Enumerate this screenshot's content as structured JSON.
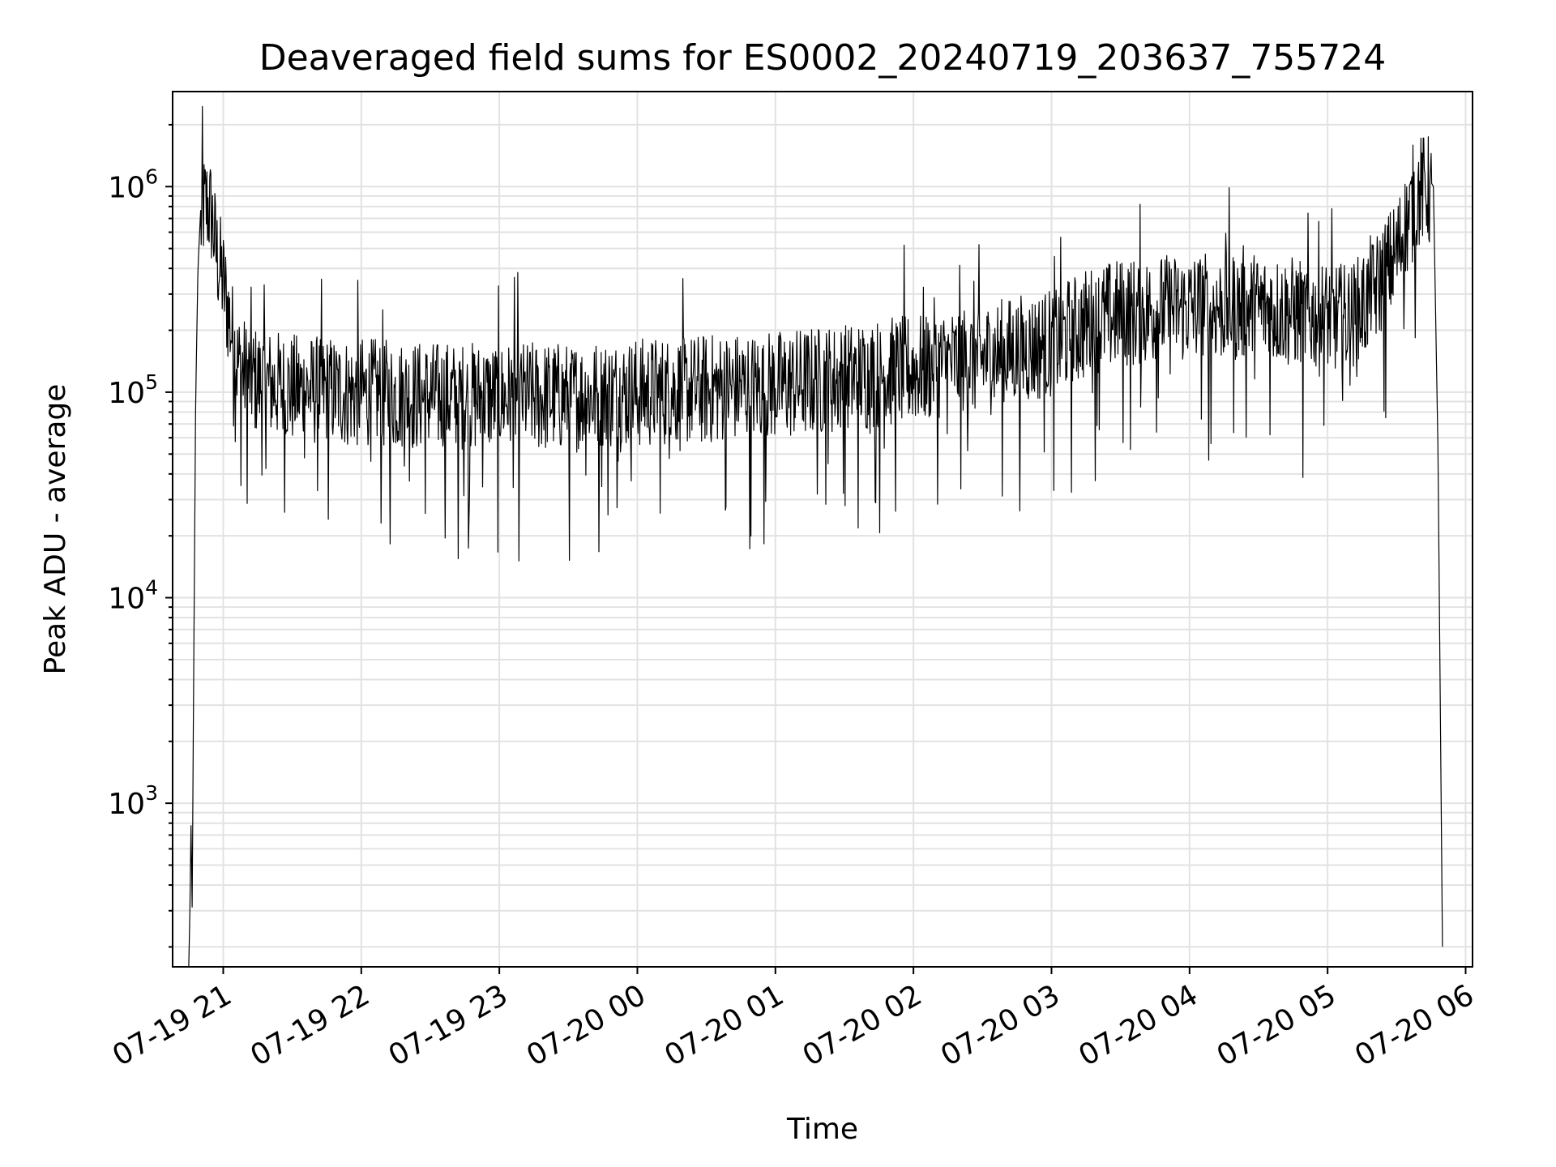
{
  "chart_data": {
    "type": "line",
    "title": "Deaveraged field sums for ES0002_20240719_203637_755724",
    "xlabel": "Time",
    "ylabel": "Peak ADU - average",
    "xscale": "time",
    "yscale": "log",
    "xlim": [
      "2024-07-19T20:38:00",
      "2024-07-20T06:03:00"
    ],
    "ylim": [
      160,
      2900000
    ],
    "grid": true,
    "legend": "none",
    "line_color": "#000000",
    "x_ticks": [
      {
        "value": "2024-07-19T21:00:00",
        "label": "07-19 21"
      },
      {
        "value": "2024-07-19T22:00:00",
        "label": "07-19 22"
      },
      {
        "value": "2024-07-19T23:00:00",
        "label": "07-19 23"
      },
      {
        "value": "2024-07-20T00:00:00",
        "label": "07-20 00"
      },
      {
        "value": "2024-07-20T01:00:00",
        "label": "07-20 01"
      },
      {
        "value": "2024-07-20T02:00:00",
        "label": "07-20 02"
      },
      {
        "value": "2024-07-20T03:00:00",
        "label": "07-20 03"
      },
      {
        "value": "2024-07-20T04:00:00",
        "label": "07-20 04"
      },
      {
        "value": "2024-07-20T05:00:00",
        "label": "07-20 05"
      },
      {
        "value": "2024-07-20T06:00:00",
        "label": "07-20 06"
      }
    ],
    "y_ticks": [
      {
        "value": 1000,
        "base": "10",
        "exp": "3"
      },
      {
        "value": 10000,
        "base": "10",
        "exp": "4"
      },
      {
        "value": 100000,
        "base": "10",
        "exp": "5"
      },
      {
        "value": 1000000,
        "base": "10",
        "exp": "6"
      }
    ],
    "series": [
      {
        "x": [
          "2024-07-19T20:45:00",
          "2024-07-19T20:45:30",
          "2024-07-19T20:46:00",
          "2024-07-19T20:46:30",
          "2024-07-19T20:47:00",
          "2024-07-19T20:48:00",
          "2024-07-19T20:49:00",
          "2024-07-19T20:50:00",
          "2024-07-19T20:51:00",
          "2024-07-19T20:53:00",
          "2024-07-19T20:55:00",
          "2024-07-19T20:57:00",
          "2024-07-19T21:00:00",
          "2024-07-19T21:03:00",
          "2024-07-19T21:06:00",
          "2024-07-19T21:10:00",
          "2024-07-19T21:15:00",
          "2024-07-19T21:30:00",
          "2024-07-19T22:00:00",
          "2024-07-19T22:30:00",
          "2024-07-19T23:00:00",
          "2024-07-19T23:30:00",
          "2024-07-20T00:00:00",
          "2024-07-20T00:30:00",
          "2024-07-20T01:00:00",
          "2024-07-20T01:30:00",
          "2024-07-20T02:00:00",
          "2024-07-20T02:30:00",
          "2024-07-20T03:00:00",
          "2024-07-20T03:15:00",
          "2024-07-20T03:30:00",
          "2024-07-20T04:00:00",
          "2024-07-20T04:30:00",
          "2024-07-20T05:00:00",
          "2024-07-20T05:10:00",
          "2024-07-20T05:20:00",
          "2024-07-20T05:30:00",
          "2024-07-20T05:35:00",
          "2024-07-20T05:40:00",
          "2024-07-20T05:43:00",
          "2024-07-20T05:46:00",
          "2024-07-20T05:48:00",
          "2024-07-20T05:50:00"
        ],
        "y": [
          160,
          300,
          800,
          300,
          2500,
          90000,
          400000,
          700000,
          900000,
          950000,
          850000,
          550000,
          400000,
          250000,
          160000,
          140000,
          130000,
          120000,
          115000,
          110000,
          110000,
          110000,
          115000,
          120000,
          125000,
          135000,
          150000,
          170000,
          200000,
          250000,
          280000,
          300000,
          300000,
          270000,
          260000,
          350000,
          550000,
          800000,
          1100000,
          1150000,
          1000000,
          50000,
          160
        ]
      }
    ]
  }
}
